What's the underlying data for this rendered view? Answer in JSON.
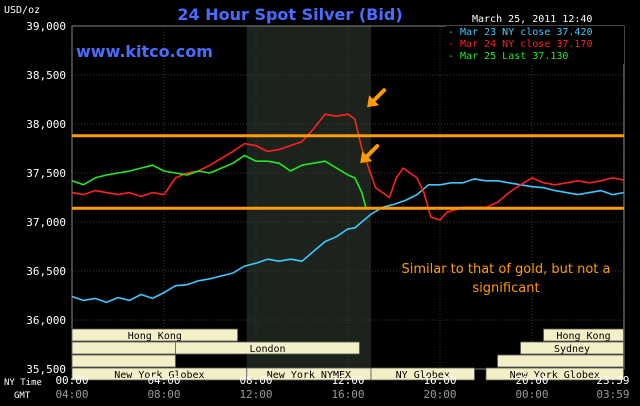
{
  "chart_data": {
    "type": "line",
    "title": "24 Hour Spot Silver (Bid)",
    "website": "www.kitco.com",
    "timestamp": "March 25, 2011 12:40",
    "ylabel": "USD/oz",
    "ylim": [
      35.5,
      39.0
    ],
    "y_ticks": [
      "39,000",
      "38,500",
      "38,000",
      "37,500",
      "37,000",
      "36,500",
      "36,000",
      "35,500"
    ],
    "y_tick_values": [
      39.0,
      38.5,
      38.0,
      37.5,
      37.0,
      36.5,
      36.0,
      35.5
    ],
    "xlim": [
      0,
      24
    ],
    "x_ticks_ny": [
      "00:00",
      "04:00",
      "08:00",
      "12:00",
      "16:00",
      "20:00",
      "23:59"
    ],
    "x_ticks_gmt": [
      "04:00",
      "08:00",
      "12:00",
      "16:00",
      "20:00",
      "00:00",
      "03:59"
    ],
    "x_tick_values": [
      0,
      4,
      8,
      12,
      16,
      20,
      23.98
    ],
    "x_axis_row_labels": [
      "NY Time",
      "GMT"
    ],
    "grid": true,
    "legend_position": "top-right",
    "shaded_region": [
      7.6,
      13.0
    ],
    "colors": {
      "background": "#000000",
      "plot_bg": "#000000",
      "shade": "#1c231c",
      "grid": "#3a3a3a",
      "axis_text": "#ffffff",
      "title": "#4a6cff",
      "website": "#4a6cff",
      "annotation": "#ff9a00",
      "session_fill": "#f3f0c8"
    },
    "series": [
      {
        "name": "Mar 23 NY close 37.420",
        "color": "#3fc8ff",
        "x": [
          0,
          0.5,
          1,
          1.5,
          2,
          2.5,
          3,
          3.5,
          4,
          4.5,
          5,
          5.5,
          6,
          6.5,
          7,
          7.5,
          8,
          8.5,
          9,
          9.5,
          10,
          10.5,
          11,
          11.5,
          12,
          12.3,
          12.6,
          13,
          13.5,
          14,
          14.5,
          15,
          15.5,
          16,
          16.5,
          17,
          17.5,
          18,
          18.5,
          19,
          19.5,
          20,
          20.5,
          21,
          21.5,
          22,
          22.5,
          23,
          23.5,
          23.98
        ],
        "y": [
          36.24,
          36.2,
          36.22,
          36.18,
          36.23,
          36.2,
          36.26,
          36.22,
          36.28,
          36.35,
          36.36,
          36.4,
          36.42,
          36.45,
          36.48,
          36.55,
          36.58,
          36.62,
          36.6,
          36.62,
          36.6,
          36.7,
          36.8,
          36.85,
          36.93,
          36.94,
          37.0,
          37.08,
          37.15,
          37.18,
          37.22,
          37.28,
          37.38,
          37.38,
          37.4,
          37.4,
          37.44,
          37.42,
          37.42,
          37.4,
          37.38,
          37.36,
          37.35,
          37.32,
          37.3,
          37.28,
          37.3,
          37.32,
          37.28,
          37.3
        ]
      },
      {
        "name": "Mar 24 NY close 37.170",
        "color": "#ff2020",
        "x": [
          0,
          0.5,
          1,
          1.5,
          2,
          2.5,
          3,
          3.5,
          4,
          4.5,
          5,
          5.5,
          6,
          6.5,
          7,
          7.5,
          8,
          8.5,
          9,
          9.5,
          10,
          10.5,
          11,
          11.5,
          12,
          12.3,
          12.6,
          12.9,
          13.2,
          13.5,
          13.8,
          14.1,
          14.4,
          14.7,
          15,
          15.3,
          15.6,
          16,
          16.3,
          16.6,
          17,
          17.5,
          18,
          18.5,
          19,
          19.5,
          20,
          20.5,
          21,
          21.5,
          22,
          22.5,
          23,
          23.5,
          23.98
        ],
        "y": [
          37.3,
          37.28,
          37.32,
          37.3,
          37.28,
          37.3,
          37.26,
          37.3,
          37.28,
          37.45,
          37.5,
          37.52,
          37.58,
          37.65,
          37.72,
          37.8,
          37.78,
          37.72,
          37.74,
          37.78,
          37.82,
          37.95,
          38.1,
          38.08,
          38.1,
          38.05,
          37.75,
          37.55,
          37.35,
          37.3,
          37.25,
          37.45,
          37.55,
          37.5,
          37.45,
          37.3,
          37.05,
          37.02,
          37.1,
          37.12,
          37.15,
          37.15,
          37.15,
          37.2,
          37.3,
          37.38,
          37.45,
          37.4,
          37.38,
          37.4,
          37.42,
          37.4,
          37.42,
          37.45,
          37.43
        ]
      },
      {
        "name": "Mar 25 Last 37.130",
        "color": "#22e822",
        "x": [
          0,
          0.5,
          1,
          1.5,
          2,
          2.5,
          3,
          3.5,
          4,
          4.5,
          5,
          5.5,
          6,
          6.5,
          7,
          7.5,
          8,
          8.5,
          9,
          9.5,
          10,
          10.5,
          11,
          11.5,
          12,
          12.3,
          12.6,
          12.8
        ],
        "y": [
          37.42,
          37.38,
          37.45,
          37.48,
          37.5,
          37.52,
          37.55,
          37.58,
          37.52,
          37.5,
          37.48,
          37.52,
          37.5,
          37.55,
          37.6,
          37.68,
          37.62,
          37.62,
          37.6,
          37.52,
          37.58,
          37.6,
          37.62,
          37.55,
          37.48,
          37.45,
          37.3,
          37.13
        ]
      }
    ],
    "resistance_lines": [
      37.88,
      37.14
    ],
    "annotation_text": [
      "Similar to that of gold, but not a",
      "significant"
    ],
    "annotation_arrows": [
      {
        "tip_x": 12.7,
        "tip_y": 38.12,
        "direction": "down-left"
      },
      {
        "tip_x": 12.4,
        "tip_y": 37.55,
        "direction": "down-left"
      }
    ],
    "sessions": [
      {
        "label": "Hong Kong",
        "start": 0,
        "end": 7.2,
        "row": 0
      },
      {
        "label": "",
        "start": 0,
        "end": 7.2,
        "row": 1
      },
      {
        "label": "London",
        "start": 4.5,
        "end": 12.5,
        "row": 1
      },
      {
        "label": "",
        "start": 0,
        "end": 4.5,
        "row": 2
      },
      {
        "label": "New York Globex",
        "start": 0,
        "end": 7.6,
        "row": 3
      },
      {
        "label": "New York NYMEX",
        "start": 7.6,
        "end": 13.0,
        "row": 3
      },
      {
        "label": "NY Globex",
        "start": 13.0,
        "end": 17.5,
        "row": 3
      },
      {
        "label": "Hong Kong",
        "start": 20.5,
        "end": 23.98,
        "row": 0
      },
      {
        "label": "Sydney",
        "start": 19.5,
        "end": 23.98,
        "row": 1
      },
      {
        "label": "",
        "start": 18.5,
        "end": 23.98,
        "row": 2
      },
      {
        "label": "New York Globex",
        "start": 18.0,
        "end": 23.98,
        "row": 3
      }
    ]
  }
}
